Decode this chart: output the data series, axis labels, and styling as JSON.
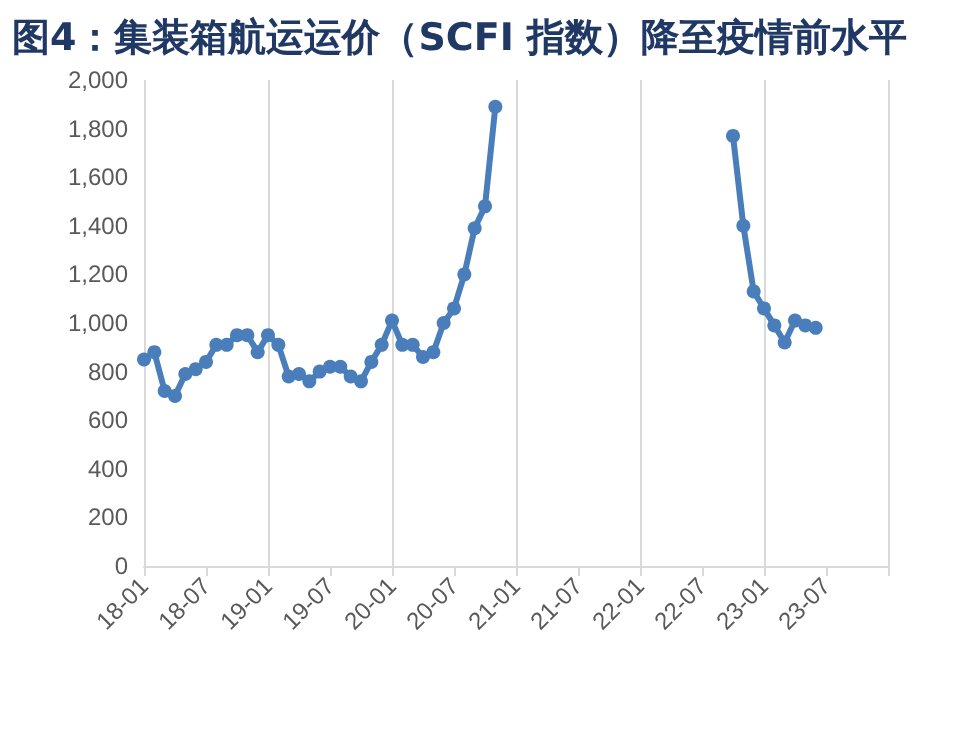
{
  "chart_data": {
    "type": "line",
    "title": "图4：集装箱航运运价（SCFI 指数）降至疫情前水平",
    "categories": [
      "18-01",
      null,
      null,
      null,
      null,
      null,
      "18-07",
      null,
      null,
      null,
      null,
      null,
      "19-01",
      null,
      null,
      null,
      null,
      null,
      "19-07",
      null,
      null,
      null,
      null,
      null,
      "20-01",
      null,
      null,
      null,
      null,
      null,
      "20-07",
      null,
      null,
      null,
      null,
      null,
      "21-01",
      null,
      null,
      null,
      null,
      null,
      "21-07",
      null,
      null,
      null,
      null,
      null,
      "22-01",
      null,
      null,
      null,
      null,
      null,
      "22-07",
      null,
      null,
      null,
      null,
      null,
      "23-01",
      null,
      null,
      null,
      null,
      null,
      "23-07",
      null,
      null,
      null,
      null,
      null,
      null
    ],
    "series": [
      {
        "color": "#4a7ebb",
        "values": [
          850,
          880,
          720,
          700,
          790,
          810,
          840,
          910,
          910,
          950,
          950,
          880,
          950,
          910,
          780,
          790,
          760,
          800,
          820,
          820,
          780,
          760,
          840,
          910,
          1010,
          910,
          910,
          860,
          880,
          1000,
          1060,
          1200,
          1390,
          1480,
          1890,
          null,
          null,
          null,
          null,
          null,
          null,
          null,
          null,
          null,
          null,
          null,
          null,
          null,
          null,
          null,
          null,
          null,
          null,
          null,
          null,
          null,
          null,
          1770,
          1400,
          1130,
          1060,
          990,
          920,
          1010,
          990,
          980,
          null,
          null,
          null,
          null,
          null,
          null,
          null
        ]
      }
    ],
    "ylim": [
      0,
      2000
    ],
    "yticks": [
      0,
      200,
      400,
      600,
      800,
      {
        "value": 1000,
        "label": "1,000"
      },
      {
        "value": 1200,
        "label": "1,200"
      },
      {
        "value": 1400,
        "label": "1,400"
      },
      {
        "value": 1600,
        "label": "1,600"
      },
      {
        "value": 1800,
        "label": "1,800"
      },
      {
        "value": 2000,
        "label": "2,000"
      }
    ],
    "grid": "x",
    "marker": "circle",
    "line_style": "solid"
  }
}
